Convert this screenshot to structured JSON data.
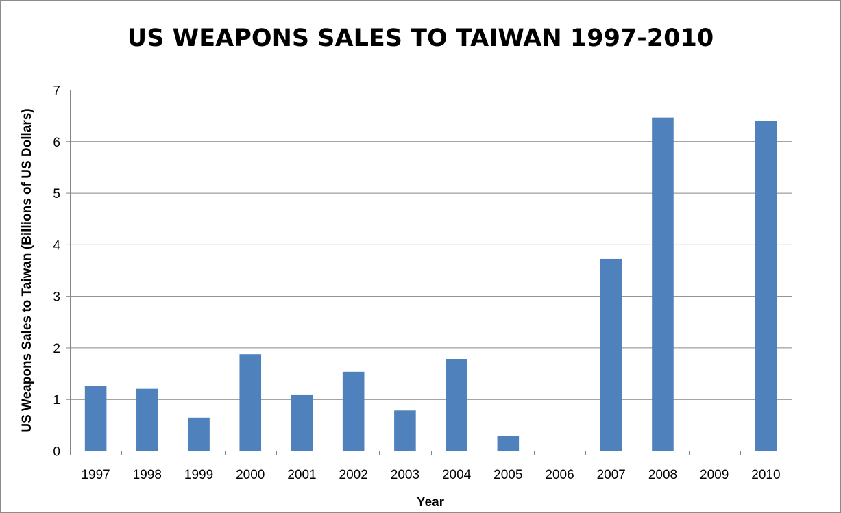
{
  "chart_data": {
    "type": "bar",
    "title": "US WEAPONS SALES TO TAIWAN 1997-2010",
    "xlabel": "Year",
    "ylabel": "US Weapons Sales to Taiwan (Billions of US Dollars)",
    "categories": [
      "1997",
      "1998",
      "1999",
      "2000",
      "2001",
      "2002",
      "2003",
      "2004",
      "2005",
      "2006",
      "2007",
      "2008",
      "2009",
      "2010"
    ],
    "values": [
      1.25,
      1.2,
      0.64,
      1.87,
      1.09,
      1.53,
      0.78,
      1.78,
      0.28,
      0,
      3.72,
      6.46,
      0,
      6.4
    ],
    "ylim": [
      0,
      7
    ],
    "yticks": [
      0,
      1,
      2,
      3,
      4,
      5,
      6,
      7
    ],
    "grid": "horizontal",
    "legend": "none",
    "colors": {
      "bar": "#4F81BD",
      "grid": "#868686",
      "axis": "#868686"
    }
  }
}
